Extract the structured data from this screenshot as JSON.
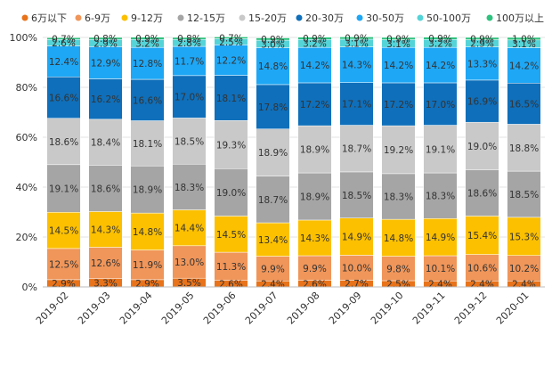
{
  "chart_data": {
    "type": "bar",
    "stacked": true,
    "percent": true,
    "categories": [
      "2019-02",
      "2019-03",
      "2019-04",
      "2019-05",
      "2019-06",
      "2019-07",
      "2019-08",
      "2019-09",
      "2019-10",
      "2019-11",
      "2019-12",
      "2020-01"
    ],
    "y_ticks": [
      "0%",
      "20%",
      "40%",
      "60%",
      "80%",
      "100%"
    ],
    "ylim": [
      0,
      100
    ],
    "legend_position": "top",
    "series": [
      {
        "name": "6万以下",
        "color": "#e8731a",
        "label_color": "#333333",
        "values": [
          2.9,
          3.3,
          2.9,
          3.5,
          2.6,
          2.4,
          2.6,
          2.7,
          2.5,
          2.4,
          2.4,
          2.4
        ]
      },
      {
        "name": "6-9万",
        "color": "#f0965a",
        "label_color": "#333333",
        "values": [
          12.5,
          12.6,
          11.9,
          13.0,
          11.3,
          9.9,
          9.9,
          10.0,
          9.8,
          10.1,
          10.6,
          10.2
        ]
      },
      {
        "name": "9-12万",
        "color": "#fcc000",
        "label_color": "#333333",
        "values": [
          14.5,
          14.3,
          14.8,
          14.4,
          14.5,
          13.4,
          14.3,
          14.9,
          14.8,
          14.9,
          15.4,
          15.3
        ]
      },
      {
        "name": "12-15万",
        "color": "#a5a5a5",
        "label_color": "#333333",
        "values": [
          19.1,
          18.6,
          18.9,
          18.3,
          19.0,
          18.7,
          18.9,
          18.5,
          18.3,
          18.3,
          18.6,
          18.5
        ]
      },
      {
        "name": "15-20万",
        "color": "#c9c9c9",
        "label_color": "#333333",
        "values": [
          18.6,
          18.4,
          18.1,
          18.5,
          19.3,
          18.9,
          18.9,
          18.7,
          19.2,
          19.1,
          19.0,
          18.8
        ]
      },
      {
        "name": "20-30万",
        "color": "#0f6fba",
        "label_color": "#333333",
        "values": [
          16.6,
          16.2,
          16.6,
          17.0,
          18.1,
          17.8,
          17.2,
          17.1,
          17.2,
          17.0,
          16.9,
          16.5
        ]
      },
      {
        "name": "30-50万",
        "color": "#1ea7f5",
        "label_color": "#333333",
        "values": [
          12.4,
          12.9,
          12.8,
          11.7,
          12.2,
          14.8,
          14.2,
          14.3,
          14.2,
          14.2,
          13.3,
          14.2
        ]
      },
      {
        "name": "50-100万",
        "color": "#55d4d8",
        "label_color": "#333333",
        "values": [
          2.6,
          2.9,
          3.2,
          2.8,
          2.5,
          3.0,
          3.2,
          3.1,
          3.1,
          3.2,
          2.9,
          3.1
        ]
      },
      {
        "name": "100万以上",
        "color": "#2ec27e",
        "label_color": "#333333",
        "values": [
          0.7,
          0.8,
          0.9,
          0.8,
          0.7,
          0.9,
          0.9,
          0.9,
          0.9,
          0.9,
          0.9,
          1.0
        ]
      }
    ]
  }
}
